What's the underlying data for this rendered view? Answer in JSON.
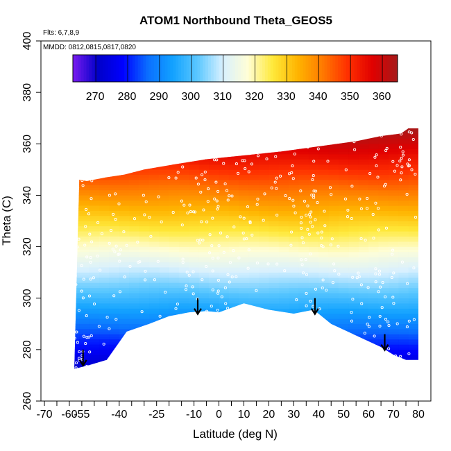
{
  "chart_data": {
    "type": "heatmap",
    "title": "ATOM1 Northbound Theta_GEOS5",
    "annotations": [
      "Flts: 6,7,8,9",
      "MMDD: 0812,0815,0817,0820"
    ],
    "xlabel": "Latitude (deg N)",
    "ylabel": "Theta (C)",
    "xlim": [
      -70,
      80
    ],
    "ylim": [
      260,
      400
    ],
    "x_tick_labels": [
      "-70",
      "-60",
      "-55",
      "-40",
      "-25",
      "-10",
      "0",
      "10",
      "20",
      "30",
      "40",
      "50",
      "60",
      "70",
      "80"
    ],
    "x_tick_values": [
      -70,
      -60,
      -55,
      -40,
      -25,
      -10,
      0,
      10,
      20,
      30,
      40,
      50,
      60,
      70,
      80
    ],
    "x_minor_ticks": [
      -65,
      -50,
      -45,
      -35,
      -30,
      -20,
      -15,
      -5,
      5,
      15,
      25,
      35,
      45,
      55,
      65,
      75
    ],
    "y_tick_values": [
      260,
      280,
      300,
      320,
      340,
      360,
      380,
      400
    ],
    "colorbar": {
      "ticks": [
        270,
        280,
        290,
        300,
        310,
        320,
        330,
        340,
        350,
        360
      ],
      "range": [
        263,
        365
      ],
      "colors": [
        "#7a1cf0",
        "#0000c8",
        "#0000ff",
        "#0a6eff",
        "#12a2ff",
        "#5cc8ff",
        "#d8f0ff",
        "#fffed6",
        "#ffe93a",
        "#ffb400",
        "#ff7a00",
        "#ff3000",
        "#e00000",
        "#a51a1a"
      ]
    },
    "top_boundary": [
      [
        -56,
        346
      ],
      [
        -53,
        345.5
      ],
      [
        -45,
        347
      ],
      [
        -38,
        348
      ],
      [
        -30,
        350
      ],
      [
        -18,
        352
      ],
      [
        -5,
        354
      ],
      [
        10,
        355.5
      ],
      [
        25,
        357
      ],
      [
        40,
        359
      ],
      [
        55,
        361
      ],
      [
        65,
        363
      ],
      [
        73,
        364
      ],
      [
        76,
        366
      ]
    ],
    "bottom_boundary": [
      [
        -58,
        272.5
      ],
      [
        -52,
        274
      ],
      [
        -45,
        276
      ],
      [
        -37,
        287
      ],
      [
        -28,
        290
      ],
      [
        -20,
        293
      ],
      [
        -12,
        294.5
      ],
      [
        -5,
        295
      ],
      [
        0,
        294.5
      ],
      [
        10,
        298
      ],
      [
        20,
        295.5
      ],
      [
        30,
        294
      ],
      [
        38,
        295.5
      ],
      [
        45,
        290
      ],
      [
        55,
        285.5
      ],
      [
        65,
        281
      ],
      [
        70,
        278
      ],
      [
        75,
        276
      ]
    ],
    "arrows": [
      [
        -54.5,
        280
      ],
      [
        -8.5,
        300
      ],
      [
        38.5,
        300
      ],
      [
        66.5,
        286
      ]
    ]
  }
}
